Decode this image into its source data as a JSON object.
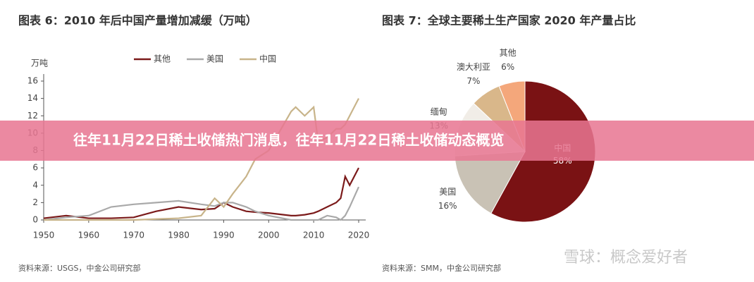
{
  "banner": "往年11月22日稀土收储热门消息，往年11月22日稀土收储动态概览",
  "watermark": "雪球：概念爱好者",
  "chart_data": [
    {
      "type": "line",
      "title": "图表 6：2010 年后中国产量增加减缓（万吨）",
      "y_label": "万吨",
      "source": "资料来源：USGS，中金公司研究部",
      "x": [
        1950,
        1955,
        1960,
        1965,
        1970,
        1975,
        1980,
        1985,
        1988,
        1990,
        1992,
        1995,
        1997,
        2000,
        2005,
        2006,
        2008,
        2010,
        2011,
        2013,
        2015,
        2016,
        2017,
        2018,
        2020
      ],
      "xlim": [
        1950,
        2020
      ],
      "xticks": [
        1950,
        1960,
        1970,
        1980,
        1990,
        2000,
        2010,
        2020
      ],
      "ylim": [
        0,
        16
      ],
      "yticks": [
        0,
        2,
        4,
        6,
        8,
        10,
        12,
        14,
        16
      ],
      "series": [
        {
          "name": "其他",
          "color": "#7b1a1a",
          "values": [
            0.2,
            0.5,
            0.2,
            0.2,
            0.3,
            1.0,
            1.5,
            1.2,
            1.3,
            2.0,
            1.5,
            1.0,
            0.9,
            0.8,
            0.5,
            0.5,
            0.6,
            0.8,
            1.0,
            1.5,
            2.0,
            2.5,
            5.0,
            4.0,
            6.0
          ]
        },
        {
          "name": "美国",
          "color": "#a9a9a9",
          "values": [
            0.0,
            0.3,
            0.5,
            1.5,
            1.8,
            2.0,
            2.2,
            1.8,
            1.6,
            2.0,
            2.0,
            1.5,
            1.0,
            0.5,
            0.0,
            0.0,
            0.0,
            0.0,
            0.0,
            0.5,
            0.3,
            0.0,
            0.5,
            1.5,
            3.8
          ]
        },
        {
          "name": "中国",
          "color": "#c8b48a",
          "values": [
            0.0,
            0.0,
            0.0,
            0.0,
            0.0,
            0.1,
            0.2,
            0.5,
            2.5,
            1.5,
            3.0,
            5.0,
            7.0,
            8.0,
            12.5,
            13.0,
            12.0,
            13.0,
            9.0,
            9.5,
            10.5,
            10.5,
            11.0,
            12.0,
            14.0
          ]
        }
      ]
    },
    {
      "type": "pie",
      "title": "图表 7：全球主要稀土生产国家 2020 年产量占比",
      "source": "资料来源：SMM，中金公司研究部",
      "categories": [
        "中国",
        "美国",
        "缅甸",
        "澳大利亚",
        "其他"
      ],
      "values": [
        58,
        16,
        13,
        7,
        6
      ],
      "value_labels": [
        "58%",
        "16%",
        "13%",
        "7%",
        "6%"
      ],
      "colors": [
        "#7a1214",
        "#c9c2b5",
        "#f1ede7",
        "#d9b78a",
        "#f4a77b"
      ]
    }
  ]
}
